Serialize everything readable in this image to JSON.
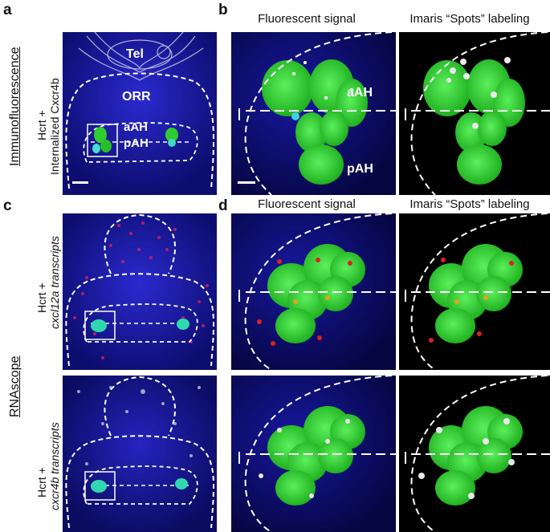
{
  "panels": {
    "a": {
      "letter": "a"
    },
    "b": {
      "letter": "b"
    },
    "c": {
      "letter": "c"
    },
    "d": {
      "letter": "d"
    }
  },
  "rows": {
    "if_group": "Immunofluorescence",
    "if_label_line1": "Hcrt +",
    "if_label_line2": "Internalized Cxcr4b",
    "rna_group": "RNAscope",
    "rna1_line1": "Hcrt +",
    "rna1_line2": "cxcl12a transcripts",
    "rna2_line1": "Hcrt +",
    "rna2_line2": "cxcr4b transcripts"
  },
  "headers": {
    "fluor": "Fluorescent signal",
    "imaris": "Imaris “Spots” labeling"
  },
  "regions": {
    "tel": "Tel",
    "orr": "ORR",
    "aah": "aAH",
    "pah": "pAH"
  },
  "colors": {
    "background_dapi": "#1a1aa8",
    "hcrt": "#2ecc2e",
    "red_dots": "#e02020",
    "spots": "#e8e8e8"
  }
}
